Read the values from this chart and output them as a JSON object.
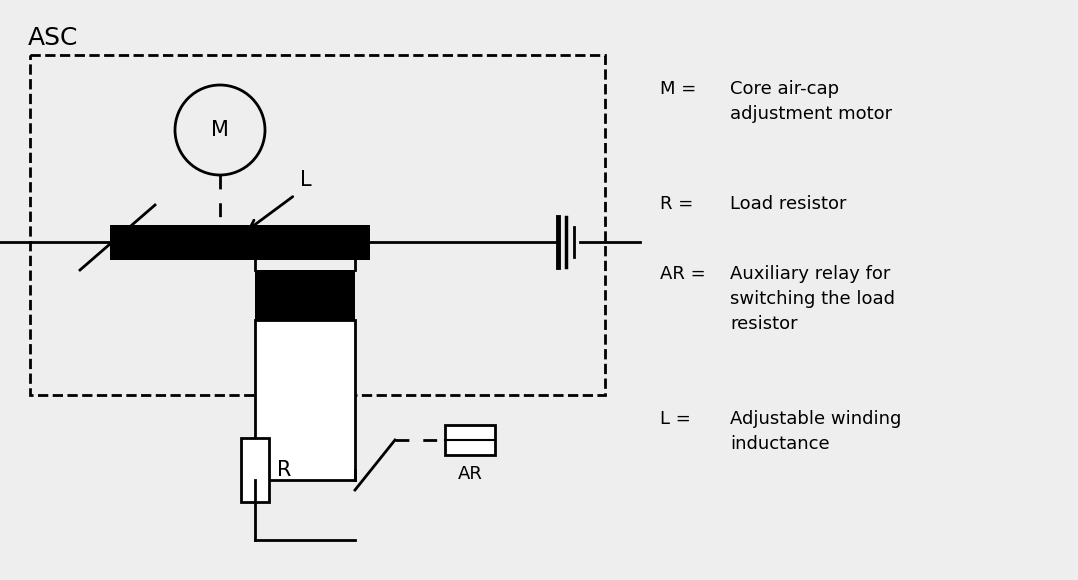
{
  "bg_color": "#eeeeee",
  "title": "ASC",
  "legend": [
    {
      "key": "M =",
      "val": "Core air-cap\nadjustment motor"
    },
    {
      "key": "R =",
      "val": "Load resistor"
    },
    {
      "key": "AR =",
      "val": "Auxiliary relay for\nswitching the load\nresistor"
    },
    {
      "key": "L =",
      "val": "Adjustable winding\ninductance"
    }
  ]
}
